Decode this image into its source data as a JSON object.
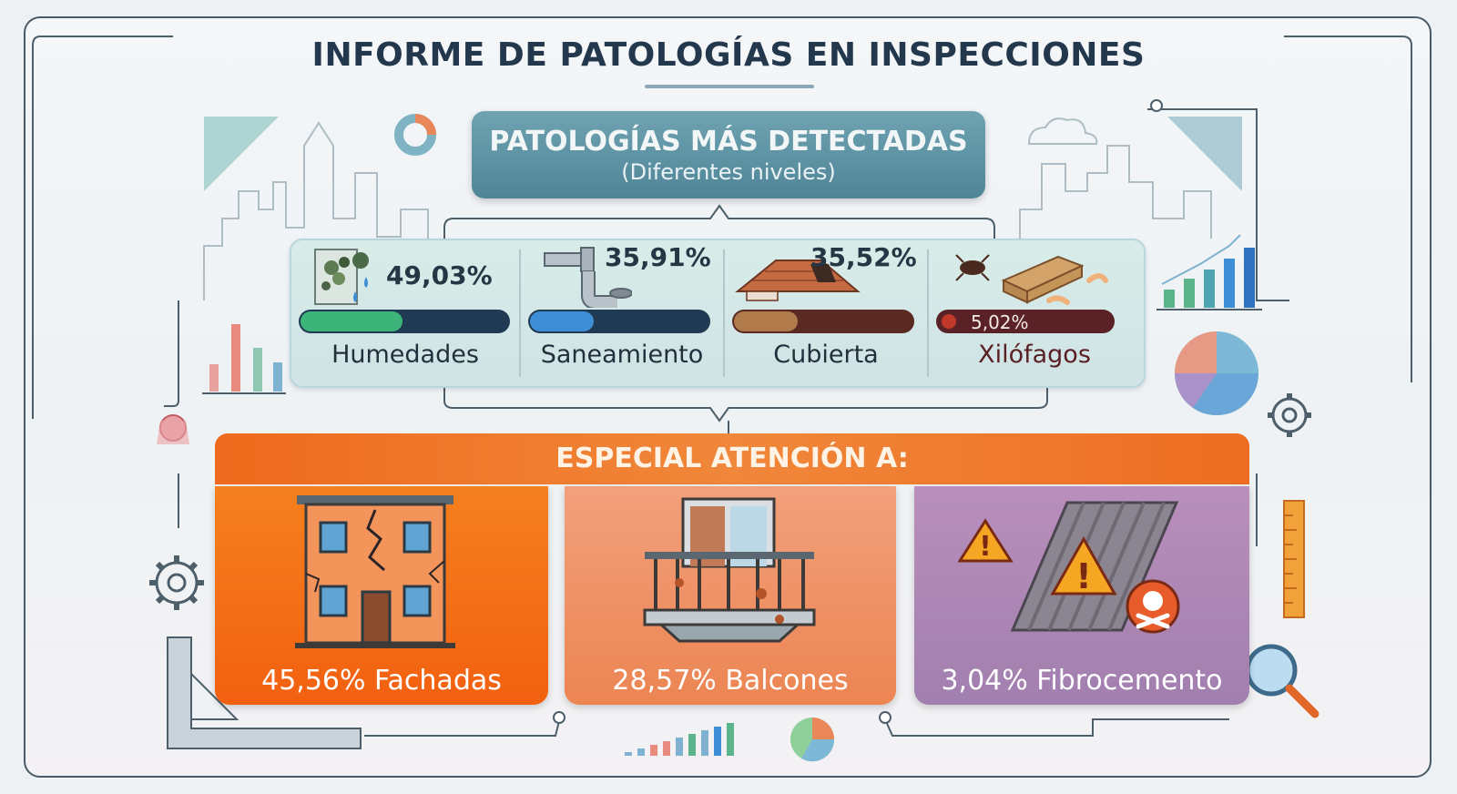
{
  "title": "INFORME DE PATOLOGÍAS EN INSPECCIONES",
  "subtitle": {
    "title": "PATOLOGÍAS MÁS DETECTADAS",
    "caption": "(Diferentes niveles)"
  },
  "pathologies": [
    {
      "name": "Humedades",
      "percent": "49,03%",
      "value": 49.03,
      "color": "#3db57a",
      "track": "#1f3a52",
      "icon": "mold-drops-icon"
    },
    {
      "name": "Saneamiento",
      "percent": "35,91%",
      "value": 35.91,
      "color": "#3d8ed6",
      "track": "#1f3a52",
      "icon": "pipe-icon"
    },
    {
      "name": "Cubierta",
      "percent": "35,52%",
      "value": 35.52,
      "color": "#b07a4b",
      "track": "#5a2a22",
      "icon": "roof-icon"
    },
    {
      "name": "Xilófagos",
      "percent": "5,02%",
      "value": 5.02,
      "color": "#c0392b",
      "track": "#5a2226",
      "icon": "woodworm-icon"
    }
  ],
  "attention": {
    "header": "ESPECIAL ATENCIÓN A:",
    "items": [
      {
        "label": "45,56% Fachadas",
        "value": 45.56,
        "icon": "cracked-building-icon",
        "color": "#f26d12"
      },
      {
        "label": "28,57% Balcones",
        "value": 28.57,
        "icon": "damaged-balcony-icon",
        "color": "#ee9365"
      },
      {
        "label": "3,04% Fibrocemento",
        "value": 3.04,
        "icon": "asbestos-roof-icon",
        "color": "#a682ad"
      }
    ]
  }
}
